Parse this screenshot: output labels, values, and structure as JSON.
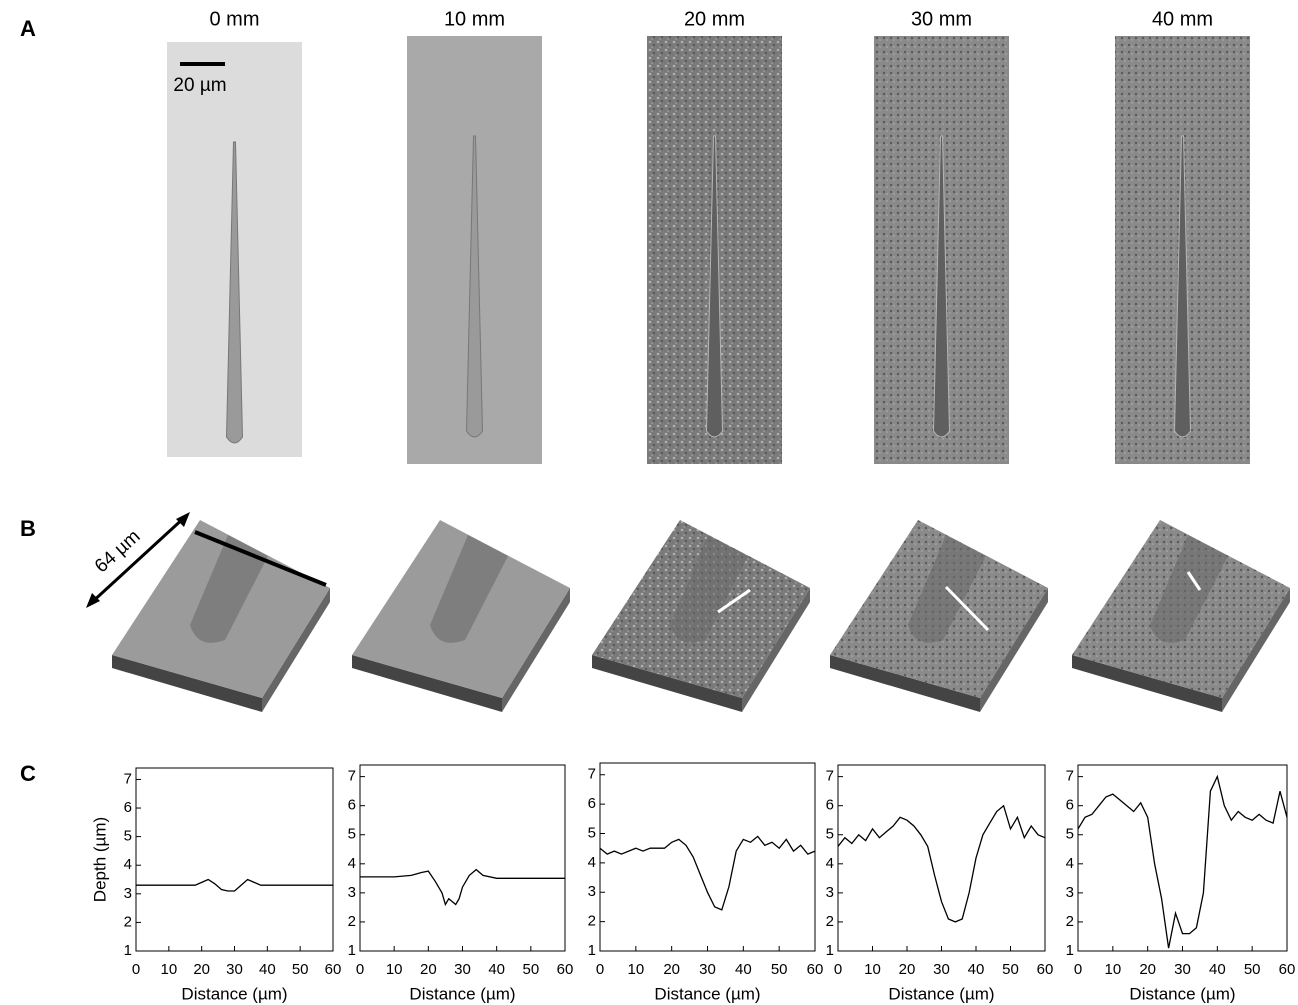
{
  "panels": [
    "A",
    "B",
    "C"
  ],
  "images": [
    "0 mm",
    "10 mm",
    "20 mm",
    "30 mm",
    "40 mm"
  ],
  "scale_bar": "20 µm",
  "dimension": "64 µm",
  "chart_data": [
    {
      "type": "line",
      "xlabel": "Distance (µm)",
      "ylabel": "Depth (µm)",
      "color": "#000000",
      "x": [
        0,
        5,
        10,
        15,
        18,
        20,
        22,
        24,
        26,
        28,
        30,
        32,
        34,
        36,
        38,
        40,
        45,
        50,
        55,
        60
      ],
      "values": [
        3.3,
        3.3,
        3.3,
        3.3,
        3.3,
        3.4,
        3.5,
        3.35,
        3.15,
        3.1,
        3.1,
        3.3,
        3.5,
        3.4,
        3.3,
        3.3,
        3.3,
        3.3,
        3.3,
        3.3
      ],
      "xlim": [
        0,
        60
      ],
      "xticks": [
        0,
        10,
        20,
        30,
        40,
        50,
        60
      ],
      "ylim": [
        1,
        7.4
      ],
      "yticks": [
        1,
        2,
        3,
        4,
        5,
        6,
        7
      ]
    },
    {
      "type": "line",
      "xlabel": "Distance (µm)",
      "color": "#000000",
      "x": [
        0,
        5,
        10,
        15,
        18,
        20,
        22,
        24,
        25,
        26,
        28,
        29,
        30,
        32,
        34,
        36,
        40,
        45,
        50,
        55,
        60
      ],
      "values": [
        3.55,
        3.55,
        3.55,
        3.6,
        3.7,
        3.75,
        3.4,
        3.0,
        2.6,
        2.8,
        2.6,
        2.8,
        3.2,
        3.6,
        3.8,
        3.6,
        3.5,
        3.5,
        3.5,
        3.5,
        3.5
      ],
      "xlim": [
        0,
        60
      ],
      "xticks": [
        0,
        10,
        20,
        30,
        40,
        50,
        60
      ],
      "ylim": [
        1,
        7.4
      ],
      "yticks": [
        1,
        2,
        3,
        4,
        5,
        6,
        7
      ]
    },
    {
      "type": "line",
      "xlabel": "Distance (µm)",
      "color": "#000000",
      "x": [
        0,
        2,
        4,
        6,
        8,
        10,
        12,
        14,
        16,
        18,
        20,
        22,
        24,
        26,
        28,
        30,
        32,
        34,
        36,
        38,
        40,
        42,
        44,
        46,
        48,
        50,
        52,
        54,
        56,
        58,
        60
      ],
      "values": [
        4.5,
        4.3,
        4.4,
        4.3,
        4.4,
        4.5,
        4.4,
        4.5,
        4.5,
        4.5,
        4.7,
        4.8,
        4.6,
        4.2,
        3.6,
        3.0,
        2.5,
        2.4,
        3.2,
        4.4,
        4.8,
        4.7,
        4.9,
        4.6,
        4.7,
        4.5,
        4.8,
        4.4,
        4.6,
        4.3,
        4.4
      ],
      "xlim": [
        0,
        60
      ],
      "xticks": [
        0,
        10,
        20,
        30,
        40,
        50,
        60
      ],
      "ylim": [
        1,
        7.4
      ],
      "yticks": [
        1,
        2,
        3,
        4,
        5,
        6,
        7
      ]
    },
    {
      "type": "line",
      "xlabel": "Distance (µm)",
      "color": "#000000",
      "x": [
        0,
        2,
        4,
        6,
        8,
        10,
        12,
        14,
        16,
        18,
        20,
        22,
        24,
        26,
        28,
        30,
        32,
        34,
        36,
        38,
        40,
        42,
        44,
        46,
        48,
        50,
        52,
        54,
        56,
        58,
        60
      ],
      "values": [
        4.6,
        4.9,
        4.7,
        5.0,
        4.8,
        5.2,
        4.9,
        5.1,
        5.3,
        5.6,
        5.5,
        5.3,
        5.0,
        4.6,
        3.6,
        2.7,
        2.1,
        2.0,
        2.1,
        3.0,
        4.2,
        5.0,
        5.4,
        5.8,
        6.0,
        5.2,
        5.6,
        4.9,
        5.3,
        5.0,
        4.9
      ],
      "xlim": [
        0,
        60
      ],
      "xticks": [
        0,
        10,
        20,
        30,
        40,
        50,
        60
      ],
      "ylim": [
        1,
        7.4
      ],
      "yticks": [
        1,
        2,
        3,
        4,
        5,
        6,
        7
      ]
    },
    {
      "type": "line",
      "xlabel": "Distance (µm)",
      "color": "#000000",
      "x": [
        0,
        2,
        4,
        6,
        8,
        10,
        12,
        14,
        16,
        18,
        20,
        22,
        24,
        26,
        28,
        30,
        32,
        34,
        36,
        38,
        40,
        42,
        44,
        46,
        48,
        50,
        52,
        54,
        56,
        58,
        60
      ],
      "values": [
        5.2,
        5.6,
        5.7,
        6.0,
        6.3,
        6.4,
        6.2,
        6.0,
        5.8,
        6.1,
        5.6,
        4.0,
        2.8,
        1.1,
        2.3,
        1.6,
        1.6,
        1.8,
        3.0,
        6.5,
        7.0,
        6.0,
        5.5,
        5.8,
        5.6,
        5.5,
        5.7,
        5.5,
        5.4,
        6.5,
        5.6
      ],
      "xlim": [
        0,
        60
      ],
      "xticks": [
        0,
        10,
        20,
        30,
        40,
        50,
        60
      ],
      "ylim": [
        1,
        7.4
      ],
      "yticks": [
        1,
        2,
        3,
        4,
        5,
        6,
        7
      ]
    }
  ]
}
